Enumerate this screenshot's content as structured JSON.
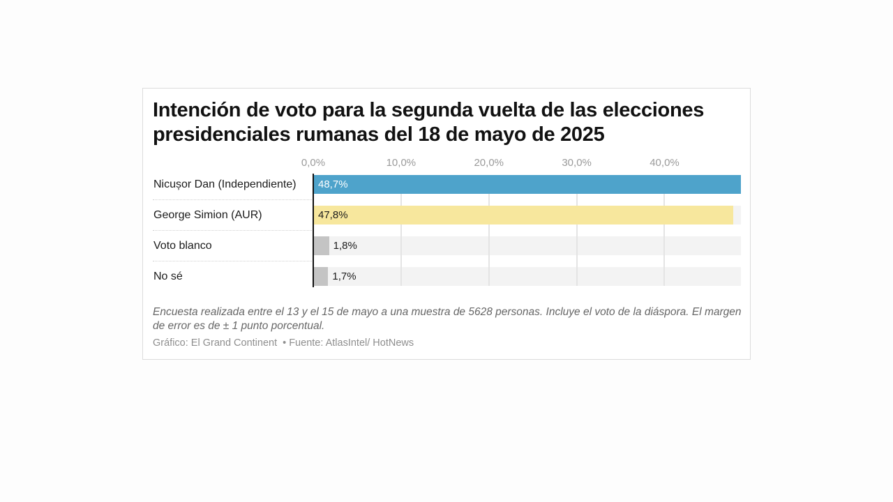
{
  "colors": {
    "nicusor": "#4ea3cb",
    "simion": "#f7e79d",
    "other": "#c4c4c4",
    "track": "#f3f3f3"
  },
  "chart_data": {
    "type": "bar",
    "orientation": "horizontal",
    "title": "Intención de voto para la segunda vuelta de las elecciones presidenciales rumanas del 18 de mayo de 2025",
    "xlim": [
      0,
      48.7
    ],
    "ticks": [
      {
        "value": 0,
        "label": "0,0%"
      },
      {
        "value": 10,
        "label": "10,0%"
      },
      {
        "value": 20,
        "label": "20,0%"
      },
      {
        "value": 30,
        "label": "30,0%"
      },
      {
        "value": 40,
        "label": "40,0%"
      }
    ],
    "categories": [
      "Nicușor Dan (Independiente)",
      "George Simion (AUR)",
      "Voto blanco",
      "No sé"
    ],
    "values": [
      48.7,
      47.8,
      1.8,
      1.7
    ],
    "value_labels": [
      "48,7%",
      "47,8%",
      "1,8%",
      "1,7%"
    ],
    "bar_colors": [
      "#4ea3cb",
      "#f7e79d",
      "#c4c4c4",
      "#c4c4c4"
    ],
    "value_label_colors": [
      "#ffffff",
      "#1a1a1a",
      "#1a1a1a",
      "#1a1a1a"
    ],
    "grid": true,
    "legend": "none"
  },
  "footer": {
    "note": "Encuesta realizada entre el 13 y el 15 de mayo a una muestra de 5628 personas. Incluye el voto de la diáspora. El margen de error es de ± 1 punto porcentual.",
    "credit": "Gráfico: El Grand Continent",
    "separator": "•",
    "source": "Fuente: AtlasIntel/ HotNews"
  }
}
